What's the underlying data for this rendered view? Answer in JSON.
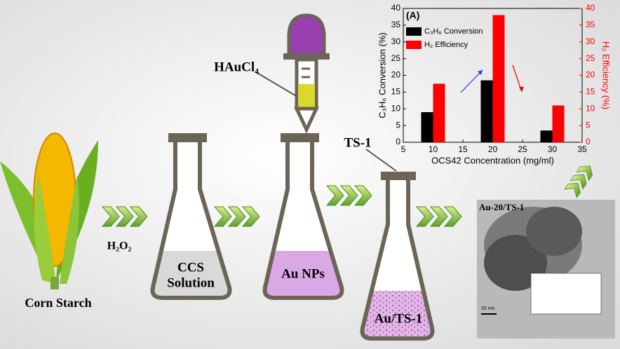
{
  "labels": {
    "corn_starch": "Corn Starch",
    "h2o2": "H₂O₂",
    "haucl4": "HAuCl₄",
    "ts1": "TS-1",
    "ccs_solution": [
      "CCS",
      "Solution"
    ],
    "au_nps": "Au NPs",
    "au_ts1": "Au/TS-1",
    "tem_title": "Au-20/TS-1",
    "scale_bar": "20 nm"
  },
  "chart_data": {
    "type": "bar",
    "title": "(A)",
    "x_label": "OCS42 Concentration (mg/ml)",
    "y_label": "C₃H₆ Conversion (%)",
    "y2_label": "H₂ Efficiency (%)",
    "x": [
      10,
      20,
      30
    ],
    "xlim": [
      5,
      35
    ],
    "xticks": [
      5,
      10,
      15,
      20,
      25,
      30,
      35
    ],
    "ylim": [
      0,
      40
    ],
    "yticks": [
      0,
      5,
      10,
      15,
      20,
      25,
      30,
      35,
      40
    ],
    "y2lim": [
      0,
      40
    ],
    "y2ticks": [
      0,
      5,
      10,
      15,
      20,
      25,
      30,
      35,
      40
    ],
    "y2_color": "#ff0000",
    "series": [
      {
        "name": "C₃H₆ Conversion",
        "color": "#000000",
        "values": [
          9,
          18.5,
          3.5
        ]
      },
      {
        "name": "H₂ Efficiency",
        "color": "#ff0000",
        "values": [
          17.5,
          38,
          11
        ],
        "axis": "y2"
      }
    ]
  }
}
